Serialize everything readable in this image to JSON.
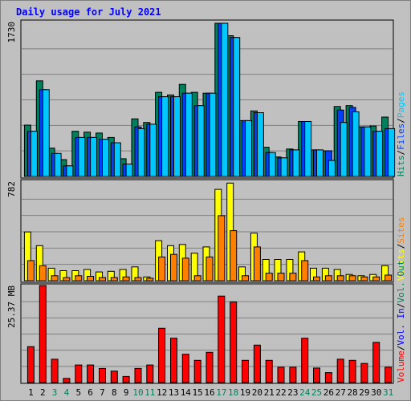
{
  "title": "Daily usage for July 2021",
  "chart_data": [
    {
      "type": "bar",
      "panel": "hits-files-pages",
      "ymax_label": "1730",
      "ylim": [
        0,
        1730
      ],
      "legend": [
        "Hits",
        "/",
        "Files",
        "/",
        "Pages"
      ],
      "categories": [
        "1",
        "2",
        "3",
        "4",
        "5",
        "6",
        "7",
        "8",
        "9",
        "10",
        "11",
        "12",
        "13",
        "14",
        "15",
        "16",
        "17",
        "18",
        "19",
        "20",
        "21",
        "22",
        "23",
        "24",
        "25",
        "26",
        "27",
        "28",
        "29",
        "30",
        "31"
      ],
      "weekend_days": [
        "3",
        "4",
        "10",
        "11",
        "17",
        "18",
        "24",
        "25",
        "31"
      ],
      "series": [
        {
          "name": "Hits",
          "values": [
            580,
            1080,
            320,
            190,
            510,
            500,
            490,
            440,
            200,
            650,
            610,
            950,
            920,
            1040,
            950,
            940,
            1730,
            1590,
            630,
            740,
            330,
            220,
            310,
            620,
            300,
            290,
            790,
            800,
            560,
            570,
            670
          ]
        },
        {
          "name": "Files",
          "values": [
            510,
            980,
            260,
            120,
            440,
            440,
            420,
            380,
            140,
            560,
            590,
            900,
            900,
            940,
            800,
            940,
            1730,
            1570,
            630,
            720,
            270,
            210,
            300,
            620,
            300,
            290,
            750,
            780,
            560,
            510,
            540
          ]
        },
        {
          "name": "Pages",
          "values": [
            510,
            980,
            260,
            120,
            440,
            440,
            420,
            380,
            140,
            540,
            590,
            900,
            900,
            940,
            800,
            940,
            1730,
            1570,
            630,
            720,
            270,
            210,
            300,
            620,
            300,
            180,
            610,
            730,
            560,
            510,
            540
          ]
        }
      ],
      "colors": {
        "Hits": "#00805c",
        "Files": "#0040ff",
        "Pages": "#00c8ff"
      }
    },
    {
      "type": "bar",
      "panel": "visits-sites",
      "ymax_label": "782",
      "ylim": [
        0,
        782
      ],
      "legend": [
        "Visits",
        "/",
        "Sites"
      ],
      "categories": [
        "1",
        "2",
        "3",
        "4",
        "5",
        "6",
        "7",
        "8",
        "9",
        "10",
        "11",
        "12",
        "13",
        "14",
        "15",
        "16",
        "17",
        "18",
        "19",
        "20",
        "21",
        "22",
        "23",
        "24",
        "25",
        "26",
        "27",
        "28",
        "29",
        "30",
        "31"
      ],
      "series": [
        {
          "name": "Visits",
          "values": [
            390,
            280,
            100,
            80,
            80,
            90,
            70,
            75,
            90,
            110,
            30,
            320,
            280,
            290,
            220,
            270,
            730,
            780,
            110,
            380,
            170,
            170,
            170,
            230,
            100,
            100,
            90,
            50,
            40,
            50,
            120
          ]
        },
        {
          "name": "Sites",
          "values": [
            160,
            120,
            40,
            25,
            40,
            35,
            25,
            25,
            30,
            25,
            20,
            190,
            210,
            180,
            40,
            190,
            520,
            400,
            40,
            270,
            60,
            60,
            60,
            160,
            30,
            40,
            40,
            40,
            30,
            30,
            45
          ]
        }
      ],
      "colors": {
        "Visits": "#ffff00",
        "Sites": "#ff8000"
      }
    },
    {
      "type": "bar",
      "panel": "volume",
      "ymax_label": "25.37 MB",
      "ylim": [
        0,
        25.37
      ],
      "legend": [
        "Volume",
        "/",
        "Vol. In",
        "/",
        "Vol. Out"
      ],
      "categories": [
        "1",
        "2",
        "3",
        "4",
        "5",
        "6",
        "7",
        "8",
        "9",
        "10",
        "11",
        "12",
        "13",
        "14",
        "15",
        "16",
        "17",
        "18",
        "19",
        "20",
        "21",
        "22",
        "23",
        "24",
        "25",
        "26",
        "27",
        "28",
        "29",
        "30",
        "31"
      ],
      "series": [
        {
          "name": "Volume",
          "values": [
            9.4,
            25.37,
            6.1,
            1.1,
            4.6,
            4.6,
            3.7,
            3.0,
            1.6,
            3.7,
            4.6,
            14.2,
            11.6,
            7.4,
            5.8,
            7.9,
            22.6,
            21.1,
            5.8,
            9.8,
            5.8,
            4.0,
            4.0,
            11.6,
            3.8,
            2.6,
            6.1,
            5.8,
            5.0,
            10.5,
            4.0
          ]
        }
      ],
      "colors": {
        "Volume": "#ff0000",
        "Vol. In": "#0000ff",
        "Vol. Out": "#00805c"
      }
    }
  ],
  "colors": {
    "background": "#c0c0c0",
    "plot_border": "#808080",
    "gridline": "#808080",
    "title": "#0000ff",
    "axis_text": "#000000",
    "weekend_text": "#00805c",
    "separator": "#000000"
  }
}
